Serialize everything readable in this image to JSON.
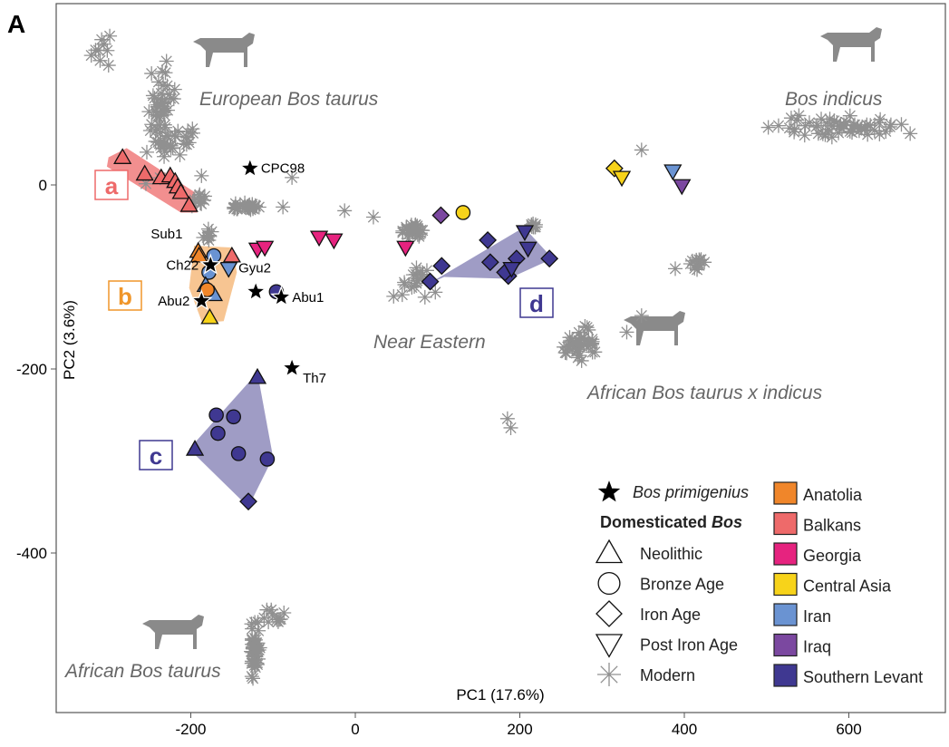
{
  "panel_label": "A",
  "chart_data": {
    "type": "scatter",
    "xlabel": "PC1 (17.6%)",
    "ylabel": "PC2 (3.6%)",
    "xlim": [
      -365,
      715
    ],
    "ylim": [
      -570,
      195
    ],
    "xticks": [
      -200,
      0,
      200,
      400,
      600
    ],
    "yticks": [
      0,
      -200,
      -400
    ],
    "grid": false,
    "legend_placement": "bottom-right",
    "colors": {
      "Anatolia": "#f0862a",
      "Balkans": "#ee6a6a",
      "Georgia": "#e6237f",
      "Central Asia": "#f7d31a",
      "Iran": "#6a93d2",
      "Iraq": "#7b48a0",
      "Southern Levant": "#3f3891",
      "Modern": "#909090",
      "Bos primigenius": "#000000"
    },
    "legend": {
      "wild": "Bos primigenius",
      "domesticated_title_plain": "Domesticated ",
      "domesticated_title_italic": "Bos",
      "periods": [
        {
          "shape": "triangle",
          "label": "Neolithic"
        },
        {
          "shape": "circle",
          "label": "Bronze Age"
        },
        {
          "shape": "diamond",
          "label": "Iron Age"
        },
        {
          "shape": "down",
          "label": "Post Iron Age"
        },
        {
          "shape": "asterisk",
          "label": "Modern"
        }
      ],
      "regions": [
        "Anatolia",
        "Balkans",
        "Georgia",
        "Central Asia",
        "Iran",
        "Iraq",
        "Southern Levant"
      ]
    },
    "annotations": [
      "European Bos taurus",
      "Bos indicus",
      "Near Eastern",
      "African Bos taurus x indicus",
      "African Bos taurus"
    ],
    "clusters": [
      {
        "label": "a",
        "region": "Balkans"
      },
      {
        "label": "b",
        "region": "Anatolia"
      },
      {
        "label": "c",
        "region": "Southern Levant"
      },
      {
        "label": "d",
        "region": "Southern Levant"
      }
    ],
    "hulls": {
      "a": [
        [
          -300,
          30
        ],
        [
          -278,
          40
        ],
        [
          -195,
          -8
        ],
        [
          -192,
          -30
        ],
        [
          -212,
          -30
        ],
        [
          -302,
          20
        ]
      ],
      "b": [
        [
          -196,
          -66
        ],
        [
          -150,
          -68
        ],
        [
          -144,
          -95
        ],
        [
          -160,
          -148
        ],
        [
          -186,
          -150
        ],
        [
          -202,
          -112
        ]
      ],
      "c": [
        [
          -119,
          -204
        ],
        [
          -100,
          -296
        ],
        [
          -130,
          -350
        ],
        [
          -202,
          -287
        ]
      ],
      "d": [
        [
          88,
          -108
        ],
        [
          205,
          -46
        ],
        [
          240,
          -80
        ],
        [
          186,
          -102
        ],
        [
          108,
          -100
        ]
      ]
    },
    "wild": [
      {
        "x": -128,
        "y": 18,
        "label": "CPC98"
      },
      {
        "x": -176,
        "y": -87,
        "label": "Ch22"
      },
      {
        "x": -121,
        "y": -116,
        "label": ""
      },
      {
        "x": -90,
        "y": -122,
        "label": "Abu1"
      },
      {
        "x": -187,
        "y": -126,
        "label": "Abu2"
      },
      {
        "x": -77,
        "y": -199,
        "label": "Th7"
      }
    ],
    "sample_labels": [
      {
        "x": -210,
        "y": -58,
        "label": "Sub1",
        "region": "Anatolia"
      },
      {
        "x": -142,
        "y": -95,
        "label": "Gyu2"
      }
    ],
    "samples": [
      {
        "x": -283,
        "y": 30,
        "shape": "triangle",
        "region": "Balkans"
      },
      {
        "x": -256,
        "y": 12,
        "shape": "triangle",
        "region": "Balkans"
      },
      {
        "x": -236,
        "y": 8,
        "shape": "triangle",
        "region": "Balkans"
      },
      {
        "x": -225,
        "y": 10,
        "shape": "triangle",
        "region": "Balkans"
      },
      {
        "x": -219,
        "y": 4,
        "shape": "triangle",
        "region": "Balkans"
      },
      {
        "x": -216,
        "y": -2,
        "shape": "triangle",
        "region": "Balkans"
      },
      {
        "x": -212,
        "y": -8,
        "shape": "triangle",
        "region": "Balkans"
      },
      {
        "x": -202,
        "y": -22,
        "shape": "triangle",
        "region": "Balkans"
      },
      {
        "x": -150,
        "y": -77,
        "shape": "triangle",
        "region": "Balkans"
      },
      {
        "x": -172,
        "y": -77,
        "shape": "circle",
        "region": "Iran"
      },
      {
        "x": -191,
        "y": -72,
        "shape": "triangle",
        "region": "Anatolia"
      },
      {
        "x": -190,
        "y": -77,
        "shape": "triangle",
        "region": "Anatolia"
      },
      {
        "x": -178,
        "y": -95,
        "shape": "circle",
        "region": "Iran"
      },
      {
        "x": -154,
        "y": -91,
        "shape": "down",
        "region": "Iran"
      },
      {
        "x": -182,
        "y": -109,
        "shape": "triangle",
        "region": "Iran"
      },
      {
        "x": -172,
        "y": -119,
        "shape": "triangle",
        "region": "Iran"
      },
      {
        "x": -180,
        "y": -114,
        "shape": "circle",
        "region": "Anatolia"
      },
      {
        "x": -177,
        "y": -144,
        "shape": "triangle",
        "region": "Central Asia"
      },
      {
        "x": -96,
        "y": -116,
        "shape": "circle",
        "region": "Southern Levant"
      },
      {
        "x": -119,
        "y": -70,
        "shape": "down",
        "region": "Georgia"
      },
      {
        "x": -110,
        "y": -68,
        "shape": "down",
        "region": "Georgia"
      },
      {
        "x": -44,
        "y": -57,
        "shape": "down",
        "region": "Georgia"
      },
      {
        "x": -26,
        "y": -60,
        "shape": "down",
        "region": "Georgia"
      },
      {
        "x": 61,
        "y": -68,
        "shape": "down",
        "region": "Georgia"
      },
      {
        "x": -119,
        "y": -209,
        "shape": "triangle",
        "region": "Southern Levant"
      },
      {
        "x": -195,
        "y": -287,
        "shape": "triangle",
        "region": "Southern Levant"
      },
      {
        "x": -130,
        "y": -344,
        "shape": "diamond",
        "region": "Southern Levant"
      },
      {
        "x": -169,
        "y": -250,
        "shape": "circle",
        "region": "Southern Levant"
      },
      {
        "x": -148,
        "y": -252,
        "shape": "circle",
        "region": "Southern Levant"
      },
      {
        "x": -167,
        "y": -270,
        "shape": "circle",
        "region": "Southern Levant"
      },
      {
        "x": -142,
        "y": -292,
        "shape": "circle",
        "region": "Southern Levant"
      },
      {
        "x": -107,
        "y": -298,
        "shape": "circle",
        "region": "Southern Levant"
      },
      {
        "x": 104,
        "y": -33,
        "shape": "diamond",
        "region": "Iraq"
      },
      {
        "x": 131,
        "y": -30,
        "shape": "circle",
        "region": "Central Asia"
      },
      {
        "x": 105,
        "y": -88,
        "shape": "diamond",
        "region": "Southern Levant"
      },
      {
        "x": 91,
        "y": -105,
        "shape": "diamond",
        "region": "Southern Levant"
      },
      {
        "x": 161,
        "y": -60,
        "shape": "diamond",
        "region": "Southern Levant"
      },
      {
        "x": 164,
        "y": -84,
        "shape": "diamond",
        "region": "Southern Levant"
      },
      {
        "x": 186,
        "y": -99,
        "shape": "diamond",
        "region": "Southern Levant"
      },
      {
        "x": 196,
        "y": -80,
        "shape": "diamond",
        "region": "Southern Levant"
      },
      {
        "x": 182,
        "y": -95,
        "shape": "diamond",
        "region": "Southern Levant"
      },
      {
        "x": 236,
        "y": -80,
        "shape": "diamond",
        "region": "Southern Levant"
      },
      {
        "x": 206,
        "y": -51,
        "shape": "down",
        "region": "Southern Levant"
      },
      {
        "x": 210,
        "y": -69,
        "shape": "down",
        "region": "Southern Levant"
      },
      {
        "x": 190,
        "y": -91,
        "shape": "down",
        "region": "Southern Levant"
      },
      {
        "x": 315,
        "y": 18,
        "shape": "diamond",
        "region": "Central Asia"
      },
      {
        "x": 324,
        "y": 8,
        "shape": "down",
        "region": "Central Asia"
      },
      {
        "x": 386,
        "y": 15,
        "shape": "down",
        "region": "Iran"
      },
      {
        "x": 397,
        "y": -1,
        "shape": "down",
        "region": "Iraq"
      }
    ],
    "modern_groups": [
      {
        "x": -311,
        "y": 147,
        "sx": 14,
        "sy": 14,
        "n": 8
      },
      {
        "x": -237,
        "y": 70,
        "sx": 12,
        "sy": 45,
        "n": 55
      },
      {
        "x": -212,
        "y": 50,
        "sx": 14,
        "sy": 12,
        "n": 15
      },
      {
        "x": -134,
        "y": -24,
        "sx": 14,
        "sy": 4,
        "n": 25
      },
      {
        "x": -178,
        "y": -55,
        "sx": 5,
        "sy": 6,
        "n": 8
      },
      {
        "x": -190,
        "y": -15,
        "sx": 8,
        "sy": 8,
        "n": 10
      },
      {
        "x": 593,
        "y": 63,
        "sx": 60,
        "sy": 9,
        "n": 55
      },
      {
        "x": 69,
        "y": -50,
        "sx": 12,
        "sy": 6,
        "n": 25
      },
      {
        "x": 70,
        "y": -105,
        "sx": 25,
        "sy": 18,
        "n": 18
      },
      {
        "x": 218,
        "y": -45,
        "sx": 5,
        "sy": 5,
        "n": 8
      },
      {
        "x": 416,
        "y": -85,
        "sx": 6,
        "sy": 6,
        "n": 12
      },
      {
        "x": 273,
        "y": -175,
        "sx": 18,
        "sy": 14,
        "n": 40
      },
      {
        "x": -123,
        "y": -505,
        "sx": 5,
        "sy": 28,
        "n": 40
      },
      {
        "x": -100,
        "y": -470,
        "sx": 12,
        "sy": 8,
        "n": 10
      }
    ],
    "modern_points": [
      [
        -187,
        10
      ],
      [
        -77,
        8
      ],
      [
        -13,
        -28
      ],
      [
        22,
        -35
      ],
      [
        348,
        38
      ],
      [
        389,
        -91
      ],
      [
        348,
        -142
      ],
      [
        185,
        -254
      ],
      [
        189,
        -264
      ],
      [
        -88,
        -24
      ],
      [
        -300,
        130
      ],
      [
        330,
        -160
      ]
    ]
  }
}
